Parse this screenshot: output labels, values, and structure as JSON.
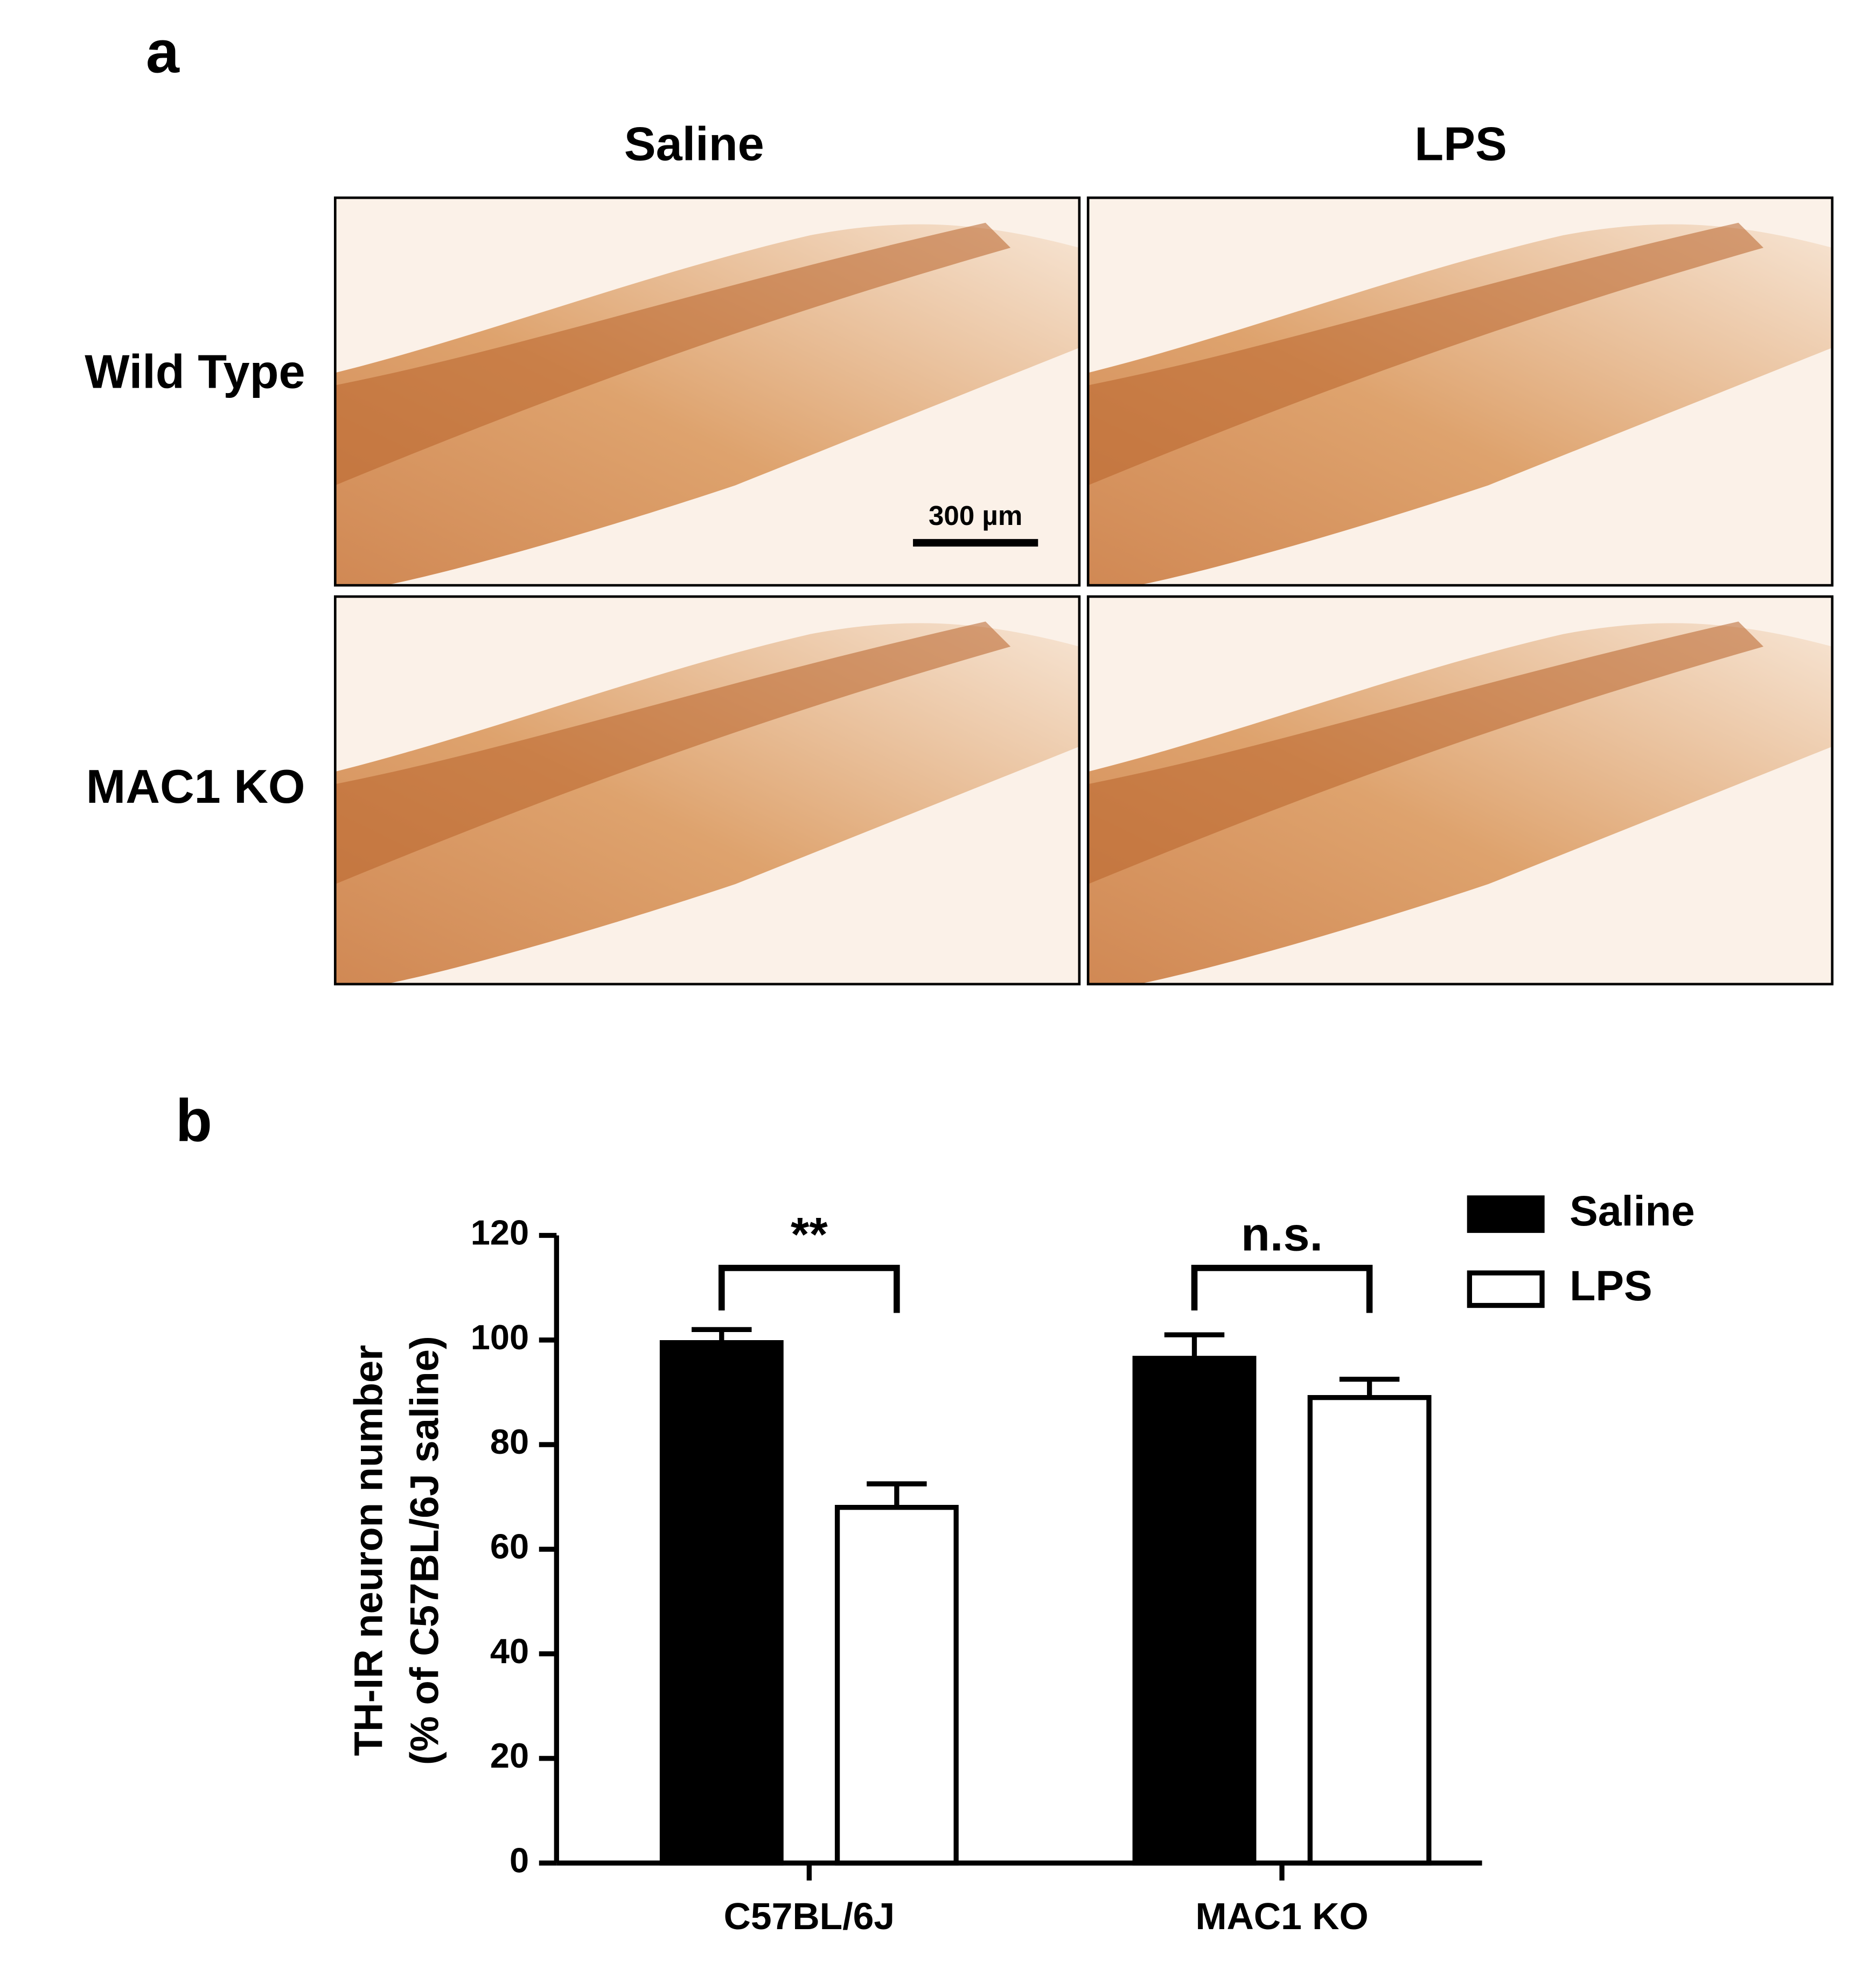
{
  "panel_a": {
    "label": "a",
    "columns": [
      "Saline",
      "LPS"
    ],
    "rows": [
      "Wild Type",
      "MAC1 KO"
    ],
    "scale_bar": "300 µm"
  },
  "panel_b": {
    "label": "b"
  },
  "chart_data": {
    "type": "bar",
    "y_label": [
      "TH-IR neuron number",
      "(% of C57BL/6J saline)"
    ],
    "categories": [
      "C57BL/6J",
      "MAC1 KO"
    ],
    "series": [
      {
        "name": "Saline",
        "color": "#000000",
        "values": [
          99.5,
          96.5
        ],
        "errors": [
          2.5,
          4.5
        ]
      },
      {
        "name": "LPS",
        "color": "#ffffff",
        "values": [
          68,
          89
        ],
        "errors": [
          4.5,
          3.5
        ]
      }
    ],
    "ylim": [
      0,
      120
    ],
    "yticks": [
      0,
      20,
      40,
      60,
      80,
      100,
      120
    ],
    "annotations": [
      "**",
      "n.s."
    ]
  }
}
